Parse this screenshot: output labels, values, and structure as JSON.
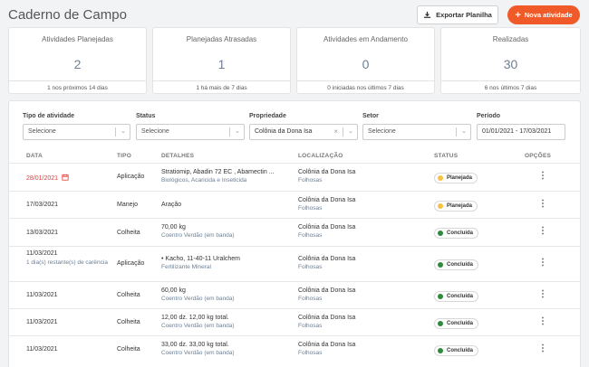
{
  "page": {
    "title": "Caderno de Campo"
  },
  "toolbar": {
    "export_label": "Exportar Planilha",
    "new_label": "Nova atividade"
  },
  "cards": [
    {
      "title": "Atividades Planejadas",
      "value": "2",
      "foot": "1 nos próximos 14 dias"
    },
    {
      "title": "Planejadas Atrasadas",
      "value": "1",
      "foot": "1 há mais de 7 dias"
    },
    {
      "title": "Atividades em Andamento",
      "value": "0",
      "foot": "0 iniciadas nos últimos 7 dias"
    },
    {
      "title": "Realizadas",
      "value": "30",
      "foot": "6 nos últimos 7 dias"
    }
  ],
  "filters": [
    {
      "label": "Tipo de atividade",
      "value": "Selecione"
    },
    {
      "label": "Status",
      "value": "Selecione"
    },
    {
      "label": "Propriedade",
      "value": "Colônia da Dona Isa"
    },
    {
      "label": "Setor",
      "value": "Selecione"
    },
    {
      "label": "Período",
      "value": "01/01/2021 - 17/03/2021"
    }
  ],
  "table": {
    "headers": [
      "DATA",
      "TIPO",
      "DETALHES",
      "LOCALIZAÇÃO",
      "STATUS",
      "OPÇÕES"
    ],
    "rows": [
      {
        "date": "28/01/2021",
        "date_note": "",
        "type": "Aplicação",
        "detail": "Stratiomip, Abadin 72 EC , Abamectin ...",
        "detail_sub": "Biológicos, Acaricida e Inseticida",
        "loc": "Colônia da Dona Isa",
        "loc_sub": "Folhosas",
        "status": "Planejada"
      },
      {
        "date": "17/03/2021",
        "date_note": "",
        "type": "Manejo",
        "detail": "Aração",
        "detail_sub": "",
        "loc": "Colônia da Dona Isa",
        "loc_sub": "Folhosas",
        "status": "Planejada"
      },
      {
        "date": "13/03/2021",
        "date_note": "",
        "type": "Colheita",
        "detail": "70,00 kg",
        "detail_sub": "Coentro Verdão (em banda)",
        "loc": "Colônia da Dona Isa",
        "loc_sub": "Folhosas",
        "status": "Concluída"
      },
      {
        "date": "11/03/2021",
        "date_note": "1 dia(s) restante(s) de carência",
        "type": "Aplicação",
        "detail": "• Kacho, 11-40-11 Uralchem",
        "detail_sub": "Fertilizante Mineral",
        "loc": "Colônia da Dona Isa",
        "loc_sub": "Folhosas",
        "status": "Concluída"
      },
      {
        "date": "11/03/2021",
        "date_note": "",
        "type": "Colheita",
        "detail": "60,00 kg",
        "detail_sub": "Coentro Verdão (em banda)",
        "loc": "Colônia da Dona Isa",
        "loc_sub": "Folhosas",
        "status": "Concluída"
      },
      {
        "date": "11/03/2021",
        "date_note": "",
        "type": "Colheita",
        "detail": "12,00 dz. 12,00 kg total.",
        "detail_sub": "Coentro Verdão (em banda)",
        "loc": "Colônia da Dona Isa",
        "loc_sub": "Folhosas",
        "status": "Concluída"
      },
      {
        "date": "11/03/2021",
        "date_note": "",
        "type": "Colheita",
        "detail": "33,00 dz. 33,00 kg total.",
        "detail_sub": "Coentro Verdão (em banda)",
        "loc": "Colônia da Dona Isa",
        "loc_sub": "Folhosas",
        "status": "Concluída"
      }
    ]
  },
  "colors": {
    "accent": "#f05a28",
    "planned": "#f5c242",
    "done": "#2e8b3d",
    "overdue": "#e53935"
  }
}
